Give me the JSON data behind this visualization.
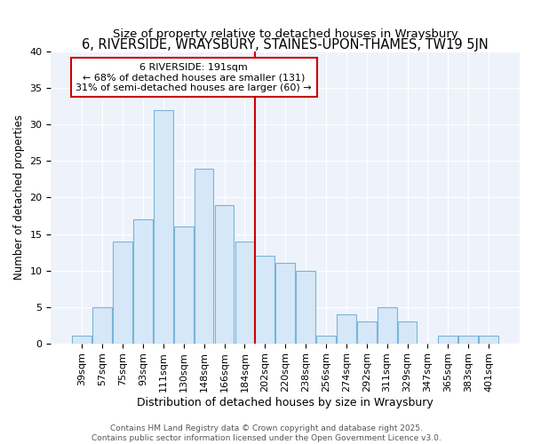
{
  "title": "6, RIVERSIDE, WRAYSBURY, STAINES-UPON-THAMES, TW19 5JN",
  "subtitle": "Size of property relative to detached houses in Wraysbury",
  "xlabel": "Distribution of detached houses by size in Wraysbury",
  "ylabel": "Number of detached properties",
  "bar_labels": [
    "39sqm",
    "57sqm",
    "75sqm",
    "93sqm",
    "111sqm",
    "130sqm",
    "148sqm",
    "166sqm",
    "184sqm",
    "202sqm",
    "220sqm",
    "238sqm",
    "256sqm",
    "274sqm",
    "292sqm",
    "311sqm",
    "329sqm",
    "347sqm",
    "365sqm",
    "383sqm",
    "401sqm"
  ],
  "bar_values": [
    1,
    5,
    14,
    17,
    32,
    16,
    24,
    19,
    14,
    12,
    11,
    10,
    1,
    4,
    3,
    5,
    3,
    0,
    1,
    1,
    1
  ],
  "bar_color": "#d6e8f7",
  "bar_edge_color": "#7ab4d8",
  "vline_x": 8.5,
  "vline_color": "#cc0000",
  "annotation_text": "6 RIVERSIDE: 191sqm\n← 68% of detached houses are smaller (131)\n31% of semi-detached houses are larger (60) →",
  "annotation_box_color": "#ffffff",
  "annotation_box_edge_color": "#cc0000",
  "ylim": [
    0,
    40
  ],
  "yticks": [
    0,
    5,
    10,
    15,
    20,
    25,
    30,
    35,
    40
  ],
  "background_color": "#ffffff",
  "plot_bg_color": "#eef3fb",
  "grid_color": "#ffffff",
  "footer_text": "Contains HM Land Registry data © Crown copyright and database right 2025.\nContains public sector information licensed under the Open Government Licence v3.0.",
  "title_fontsize": 10.5,
  "subtitle_fontsize": 9.5,
  "xlabel_fontsize": 9,
  "ylabel_fontsize": 8.5,
  "tick_fontsize": 8,
  "annotation_fontsize": 8,
  "footer_fontsize": 6.5
}
